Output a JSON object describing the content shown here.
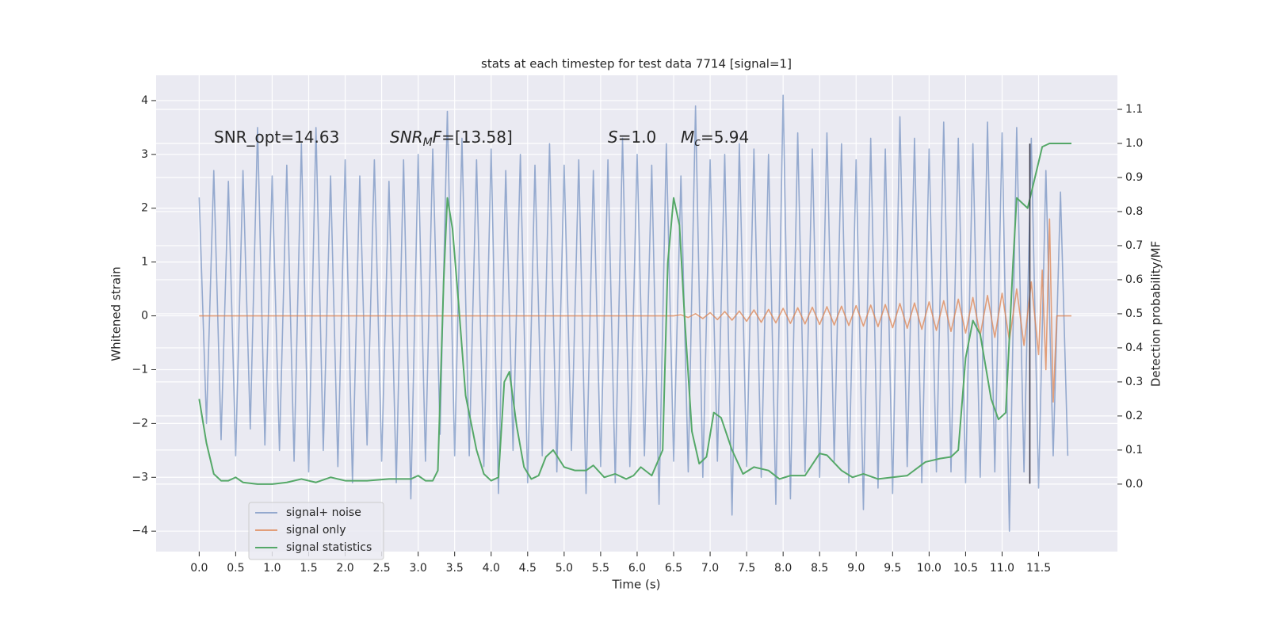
{
  "chart_data": {
    "type": "line",
    "title": "stats at each timestep for test data 7714 [signal=1]",
    "xlabel": "Time (s)",
    "ylabel": "Whitened strain",
    "y2label": "Detection probability/MF",
    "background": "#eaeaf2",
    "grid": true,
    "legend": "lower left",
    "xlim": [
      -0.59,
      12.58
    ],
    "ylim": [
      -4.38,
      4.47
    ],
    "y2lim": [
      -0.198,
      1.2
    ],
    "xticks": [
      {
        "value": 0,
        "label": "0.0"
      },
      {
        "value": 0.5,
        "label": "0.5"
      },
      {
        "value": 1,
        "label": "1.0"
      },
      {
        "value": 1.5,
        "label": "1.5"
      },
      {
        "value": 2,
        "label": "2.0"
      },
      {
        "value": 2.5,
        "label": "2.5"
      },
      {
        "value": 3,
        "label": "3.0"
      },
      {
        "value": 3.5,
        "label": "3.5"
      },
      {
        "value": 4,
        "label": "4.0"
      },
      {
        "value": 4.5,
        "label": "4.5"
      },
      {
        "value": 5,
        "label": "5.0"
      },
      {
        "value": 5.5,
        "label": "5.5"
      },
      {
        "value": 6,
        "label": "6.0"
      },
      {
        "value": 6.5,
        "label": "6.5"
      },
      {
        "value": 7,
        "label": "7.0"
      },
      {
        "value": 7.5,
        "label": "7.5"
      },
      {
        "value": 8,
        "label": "8.0"
      },
      {
        "value": 8.5,
        "label": "8.5"
      },
      {
        "value": 9,
        "label": "9.0"
      },
      {
        "value": 9.5,
        "label": "9.5"
      },
      {
        "value": 10,
        "label": "10.0"
      },
      {
        "value": 10.5,
        "label": "10.5"
      },
      {
        "value": 11,
        "label": "11.0"
      },
      {
        "value": 11.5,
        "label": "11.5"
      }
    ],
    "yticks": [
      {
        "value": -4,
        "label": "−4"
      },
      {
        "value": -3,
        "label": "−3"
      },
      {
        "value": -2,
        "label": "−2"
      },
      {
        "value": -1,
        "label": "−1"
      },
      0,
      1,
      2,
      3,
      4
    ],
    "y2ticks": [
      {
        "value": 0,
        "label": "0.0"
      },
      {
        "value": 0.1,
        "label": "0.1"
      },
      {
        "value": 0.2,
        "label": "0.2"
      },
      {
        "value": 0.3,
        "label": "0.3"
      },
      {
        "value": 0.4,
        "label": "0.4"
      },
      {
        "value": 0.5,
        "label": "0.5"
      },
      {
        "value": 0.6,
        "label": "0.6"
      },
      {
        "value": 0.7,
        "label": "0.7"
      },
      {
        "value": 0.8,
        "label": "0.8"
      },
      {
        "value": 0.9,
        "label": "0.9"
      },
      {
        "value": 1,
        "label": "1.0"
      },
      {
        "value": 1.1,
        "label": "1.1"
      }
    ],
    "series": [
      {
        "name": "signal+ noise",
        "color": "#4c72b0",
        "opacity": 0.55,
        "axis": "y",
        "x": [
          0,
          0.1,
          0.2,
          0.3,
          0.4,
          0.5,
          0.6,
          0.7,
          0.8,
          0.9,
          1,
          1.1,
          1.2,
          1.3,
          1.4,
          1.5,
          1.6,
          1.7,
          1.8,
          1.9,
          2,
          2.1,
          2.2,
          2.3,
          2.4,
          2.5,
          2.6,
          2.7,
          2.8,
          2.9,
          3,
          3.1,
          3.2,
          3.3,
          3.4,
          3.5,
          3.6,
          3.7,
          3.8,
          3.9,
          4,
          4.1,
          4.2,
          4.3,
          4.4,
          4.5,
          4.6,
          4.7,
          4.8,
          4.9,
          5,
          5.1,
          5.2,
          5.3,
          5.4,
          5.5,
          5.6,
          5.7,
          5.8,
          5.9,
          6,
          6.1,
          6.2,
          6.3,
          6.4,
          6.5,
          6.6,
          6.7,
          6.8,
          6.9,
          7,
          7.1,
          7.2,
          7.3,
          7.4,
          7.5,
          7.6,
          7.7,
          7.8,
          7.9,
          8,
          8.1,
          8.2,
          8.3,
          8.4,
          8.5,
          8.6,
          8.7,
          8.8,
          8.9,
          9,
          9.1,
          9.2,
          9.3,
          9.4,
          9.5,
          9.6,
          9.7,
          9.8,
          9.9,
          10,
          10.1,
          10.2,
          10.3,
          10.4,
          10.5,
          10.6,
          10.7,
          10.8,
          10.9,
          11,
          11.1,
          11.2,
          11.3,
          11.4,
          11.5,
          11.6,
          11.7,
          11.8,
          11.9
        ],
        "values": [
          2.2,
          -2.0,
          2.7,
          -2.3,
          2.5,
          -2.6,
          2.7,
          -2.1,
          3.5,
          -2.4,
          2.6,
          -2.5,
          2.8,
          -2.7,
          3.2,
          -2.9,
          3.5,
          -2.5,
          2.6,
          -2.8,
          2.9,
          -3.1,
          2.6,
          -2.4,
          2.9,
          -2.7,
          2.5,
          -3.1,
          2.9,
          -3.4,
          3.0,
          -2.7,
          3.1,
          -2.2,
          3.8,
          -2.6,
          3.3,
          -2.6,
          2.9,
          -2.8,
          3.1,
          -3.3,
          2.7,
          -2.5,
          3.0,
          -3.1,
          2.8,
          -2.6,
          3.2,
          -2.9,
          2.8,
          -2.5,
          2.9,
          -3.3,
          2.7,
          -2.8,
          2.9,
          -3.1,
          3.3,
          -2.8,
          3.0,
          -2.6,
          2.8,
          -3.5,
          3.2,
          -2.7,
          2.6,
          -2.9,
          3.9,
          -3.0,
          2.9,
          -2.7,
          3.0,
          -3.7,
          3.2,
          -2.8,
          3.1,
          -3.0,
          3.0,
          -3.5,
          4.1,
          -3.4,
          3.4,
          -2.9,
          3.1,
          -3.0,
          3.4,
          -2.7,
          3.2,
          -3.1,
          2.9,
          -3.6,
          3.3,
          -3.2,
          3.1,
          -3.3,
          3.7,
          -2.8,
          3.3,
          -3.1,
          3.1,
          -2.9,
          3.6,
          -2.9,
          3.3,
          -3.1,
          3.2,
          -3.0,
          3.6,
          -2.9,
          3.4,
          -4.0,
          3.5,
          -2.9,
          3.3,
          -3.2,
          2.7,
          -2.6,
          2.3,
          -2.6
        ]
      },
      {
        "name": "signal only",
        "color": "#dd8452",
        "opacity": 0.75,
        "axis": "y",
        "x": [
          0,
          6.5,
          6.6,
          6.7,
          6.8,
          6.9,
          7,
          7.1,
          7.2,
          7.3,
          7.4,
          7.5,
          7.6,
          7.7,
          7.8,
          7.9,
          8,
          8.1,
          8.2,
          8.3,
          8.4,
          8.5,
          8.6,
          8.7,
          8.8,
          8.9,
          9,
          9.1,
          9.2,
          9.3,
          9.4,
          9.5,
          9.6,
          9.7,
          9.8,
          9.9,
          10,
          10.1,
          10.2,
          10.3,
          10.4,
          10.5,
          10.6,
          10.7,
          10.8,
          10.9,
          11,
          11.1,
          11.2,
          11.3,
          11.4,
          11.5,
          11.55,
          11.6,
          11.65,
          11.7,
          11.75,
          11.95
        ],
        "values": [
          0,
          0,
          0.02,
          -0.03,
          0.04,
          -0.05,
          0.06,
          -0.07,
          0.08,
          -0.08,
          0.09,
          -0.1,
          0.11,
          -0.12,
          0.12,
          -0.13,
          0.14,
          -0.14,
          0.15,
          -0.15,
          0.16,
          -0.16,
          0.17,
          -0.17,
          0.18,
          -0.18,
          0.19,
          -0.19,
          0.2,
          -0.2,
          0.21,
          -0.22,
          0.23,
          -0.23,
          0.24,
          -0.25,
          0.26,
          -0.27,
          0.28,
          -0.29,
          0.31,
          -0.32,
          0.34,
          -0.36,
          0.38,
          -0.4,
          0.42,
          -0.46,
          0.5,
          -0.55,
          0.63,
          -0.72,
          0.85,
          -1.0,
          1.8,
          -1.6,
          0,
          0
        ]
      },
      {
        "name": "signal statistics",
        "color": "#55a868",
        "opacity": 1,
        "axis": "y2",
        "x": [
          0,
          0.1,
          0.2,
          0.3,
          0.4,
          0.5,
          0.6,
          0.8,
          1,
          1.2,
          1.4,
          1.6,
          1.8,
          2,
          2.3,
          2.6,
          2.9,
          3,
          3.1,
          3.2,
          3.27,
          3.35,
          3.4,
          3.47,
          3.55,
          3.65,
          3.8,
          3.9,
          4,
          4.1,
          4.18,
          4.25,
          4.35,
          4.45,
          4.55,
          4.65,
          4.75,
          4.85,
          5,
          5.15,
          5.3,
          5.4,
          5.55,
          5.7,
          5.85,
          5.95,
          6.05,
          6.2,
          6.35,
          6.42,
          6.5,
          6.58,
          6.65,
          6.75,
          6.85,
          6.95,
          7.05,
          7.15,
          7.3,
          7.45,
          7.6,
          7.8,
          7.95,
          8.1,
          8.3,
          8.5,
          8.6,
          8.8,
          8.95,
          9.1,
          9.3,
          9.5,
          9.7,
          9.95,
          10.15,
          10.3,
          10.4,
          10.5,
          10.6,
          10.7,
          10.85,
          10.95,
          11.05,
          11.15,
          11.2,
          11.3,
          11.35,
          11.45,
          11.55,
          11.65,
          11.95
        ],
        "values": [
          0.25,
          0.12,
          0.03,
          0.01,
          0.01,
          0.02,
          0.005,
          0,
          0,
          0.005,
          0.015,
          0.005,
          0.02,
          0.01,
          0.01,
          0.015,
          0.015,
          0.025,
          0.01,
          0.01,
          0.04,
          0.6,
          0.84,
          0.75,
          0.54,
          0.26,
          0.1,
          0.03,
          0.01,
          0.02,
          0.3,
          0.33,
          0.17,
          0.05,
          0.015,
          0.025,
          0.08,
          0.1,
          0.05,
          0.04,
          0.04,
          0.055,
          0.02,
          0.03,
          0.015,
          0.025,
          0.05,
          0.025,
          0.1,
          0.65,
          0.84,
          0.76,
          0.49,
          0.155,
          0.06,
          0.08,
          0.21,
          0.195,
          0.1,
          0.03,
          0.05,
          0.04,
          0.015,
          0.025,
          0.025,
          0.09,
          0.085,
          0.04,
          0.02,
          0.03,
          0.015,
          0.02,
          0.025,
          0.065,
          0.075,
          0.08,
          0.1,
          0.37,
          0.48,
          0.44,
          0.25,
          0.19,
          0.21,
          0.65,
          0.84,
          0.82,
          0.81,
          0.9,
          0.99,
          1.0,
          1.0
        ]
      }
    ],
    "vlines": [
      {
        "x": 11.38,
        "ymin": -3.12,
        "ymax": 3.2,
        "color": "#3a3a4a"
      }
    ],
    "annotations": [
      {
        "parts": [
          {
            "text": "SNR_opt=14.63",
            "style": "normal"
          }
        ]
      },
      {
        "parts": [
          {
            "text": "SNR",
            "style": "italic"
          },
          {
            "text": "M",
            "style": "sub"
          },
          {
            "text": "F",
            "style": "italic"
          },
          {
            "text": "=[13.58]",
            "style": "normal"
          }
        ]
      },
      {
        "parts": [
          {
            "text": "S",
            "style": "italic"
          },
          {
            "text": "=1.0",
            "style": "normal"
          }
        ]
      },
      {
        "parts": [
          {
            "text": "M",
            "style": "italic"
          },
          {
            "text": "c",
            "style": "sub"
          },
          {
            "text": "=5.94",
            "style": "normal"
          }
        ]
      }
    ]
  }
}
